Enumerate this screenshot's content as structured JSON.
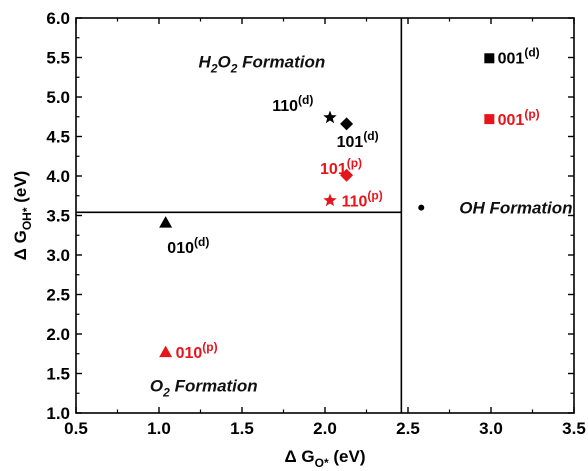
{
  "chart_data": {
    "type": "scatter",
    "title": "",
    "xlabel": {
      "prefix": "Δ G",
      "sub": "O*",
      "suffix": " (eV)"
    },
    "ylabel": {
      "prefix": "Δ G",
      "sub": "OH*",
      "suffix": " (eV)"
    },
    "xlim": [
      0.5,
      3.5
    ],
    "ylim": [
      1.0,
      6.0
    ],
    "xticks": [
      "0.5",
      "1.0",
      "1.5",
      "2.0",
      "2.5",
      "3.0",
      "3.5"
    ],
    "yticks": [
      "1.0",
      "1.5",
      "2.0",
      "2.5",
      "3.0",
      "3.5",
      "4.0",
      "4.5",
      "5.0",
      "5.5",
      "6.0"
    ],
    "grid": false,
    "colors": {
      "d": "#000000",
      "p": "#e8141b"
    },
    "guide_lines": {
      "vertical_x": 2.46,
      "horizontal_y": 3.54,
      "horizontal_x_range": [
        0.5,
        2.46
      ]
    },
    "regions": [
      {
        "name": "h2o2",
        "parts": [
          {
            "t": "H"
          },
          {
            "t": "2",
            "sub": true
          },
          {
            "t": "O"
          },
          {
            "t": "2",
            "sub": true
          },
          {
            "t": " Formation"
          }
        ],
        "x": 1.62,
        "y": 5.45
      },
      {
        "name": "o2",
        "parts": [
          {
            "t": "O"
          },
          {
            "t": "2",
            "sub": true
          },
          {
            "t": " Formation"
          }
        ],
        "x": 1.27,
        "y": 1.35
      },
      {
        "name": "oh",
        "parts": [
          {
            "t": "OH Formation"
          }
        ],
        "x": 3.15,
        "y": 3.6
      }
    ],
    "points": [
      {
        "id": "001-d",
        "facet": "001",
        "tag": "(d)",
        "marker": "square",
        "group": "d",
        "x": 2.99,
        "y": 5.49,
        "label_x": 3.04,
        "label_y": 5.5,
        "anchor": "start"
      },
      {
        "id": "001-p",
        "facet": "001",
        "tag": "(p)",
        "marker": "square",
        "group": "p",
        "x": 2.99,
        "y": 4.72,
        "label_x": 3.04,
        "label_y": 4.72,
        "anchor": "start"
      },
      {
        "id": "110-d",
        "facet": "110",
        "tag": "(d)",
        "marker": "star",
        "group": "d",
        "x": 2.03,
        "y": 4.74,
        "label_x": 1.93,
        "label_y": 4.9,
        "anchor": "end"
      },
      {
        "id": "101-d",
        "facet": "101",
        "tag": "(d)",
        "marker": "diamond",
        "group": "d",
        "x": 2.13,
        "y": 4.66,
        "label_x": 2.07,
        "label_y": 4.44,
        "anchor": "start"
      },
      {
        "id": "101-p",
        "facet": "101",
        "tag": "(p)",
        "marker": "diamond",
        "group": "p",
        "x": 2.13,
        "y": 4.01,
        "label_x": 1.97,
        "label_y": 4.1,
        "anchor": "start"
      },
      {
        "id": "110-p",
        "facet": "110",
        "tag": "(p)",
        "marker": "star",
        "group": "p",
        "x": 2.03,
        "y": 3.69,
        "label_x": 2.1,
        "label_y": 3.69,
        "anchor": "start"
      },
      {
        "id": "010-d",
        "facet": "010",
        "tag": "(d)",
        "marker": "triangle",
        "group": "d",
        "x": 1.04,
        "y": 3.41,
        "label_x": 1.05,
        "label_y": 3.1,
        "anchor": "start"
      },
      {
        "id": "010-p",
        "facet": "010",
        "tag": "(p)",
        "marker": "triangle",
        "group": "p",
        "x": 1.04,
        "y": 1.77,
        "label_x": 1.1,
        "label_y": 1.77,
        "anchor": "start"
      },
      {
        "id": "oh",
        "facet": "",
        "tag": "",
        "marker": "circle",
        "group": "d",
        "x": 2.58,
        "y": 3.6,
        "label_x": 2.58,
        "label_y": 3.6,
        "anchor": "start"
      }
    ]
  }
}
